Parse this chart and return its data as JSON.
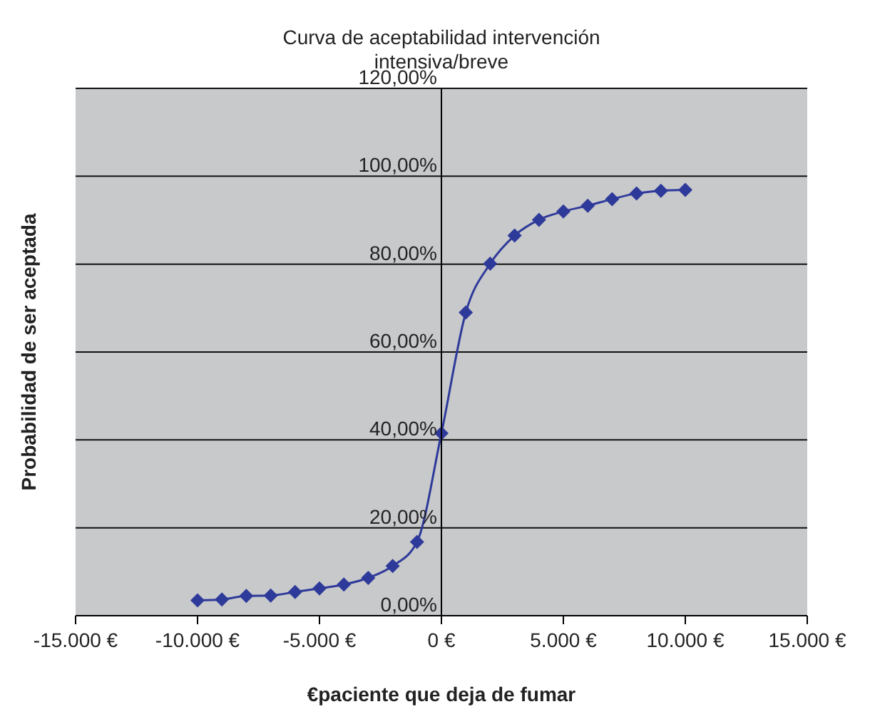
{
  "chart_data": {
    "type": "line",
    "title": "Curva de aceptabilidad intervención intensiva/breve",
    "xlabel": "€paciente que deja de fumar",
    "ylabel": "Probabilidad de ser aceptada",
    "x": [
      -10000,
      -9000,
      -8000,
      -7000,
      -6000,
      -5000,
      -4000,
      -3000,
      -2000,
      -1000,
      0,
      1000,
      2000,
      3000,
      4000,
      5000,
      6000,
      7000,
      8000,
      9000,
      10000
    ],
    "series": [
      {
        "color": "#2e3a9a",
        "values": [
          3.5,
          3.7,
          4.5,
          4.6,
          5.4,
          6.2,
          7.1,
          8.6,
          11.3,
          16.8,
          41.5,
          69.0,
          80.1,
          86.5,
          90.1,
          92.0,
          93.3,
          94.8,
          96.1,
          96.7,
          96.9
        ]
      }
    ],
    "xlim": [
      -15000,
      15000
    ],
    "xticks": [
      {
        "value": -15000,
        "label": "-15.000 €"
      },
      {
        "value": -10000,
        "label": "-10.000 €"
      },
      {
        "value": -5000,
        "label": "-5.000 €"
      },
      {
        "value": 0,
        "label": "0 €"
      },
      {
        "value": 5000,
        "label": "5.000 €"
      },
      {
        "value": 10000,
        "label": "10.000 €"
      },
      {
        "value": 15000,
        "label": "15.000 €"
      }
    ],
    "ylim": [
      0,
      120
    ],
    "yticks": [
      {
        "value": 0,
        "label": "0,00%"
      },
      {
        "value": 20,
        "label": "20,00%"
      },
      {
        "value": 40,
        "label": "40,00%"
      },
      {
        "value": 60,
        "label": "60,00%"
      },
      {
        "value": 80,
        "label": "80,00%"
      },
      {
        "value": 100,
        "label": "100,00%"
      },
      {
        "value": 120,
        "label": "120,00%"
      }
    ],
    "grid": "y",
    "legend": false,
    "marker": "diamond",
    "line_style": "solid"
  }
}
